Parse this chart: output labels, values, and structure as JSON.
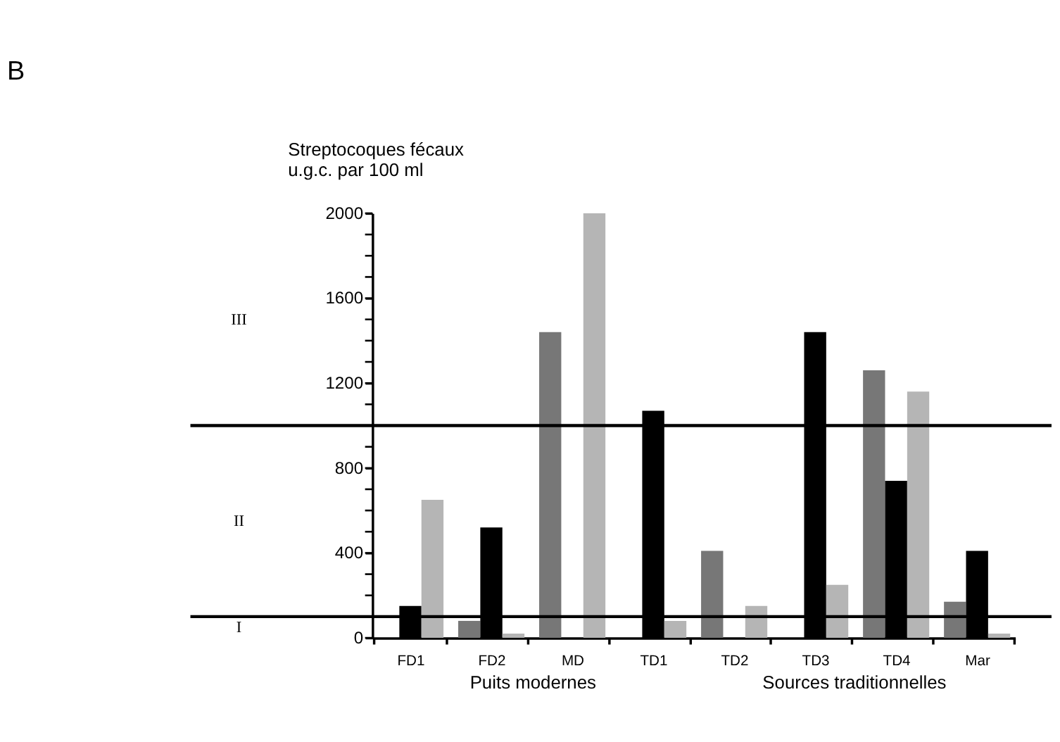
{
  "chart_data": {
    "type": "bar",
    "title": "B",
    "ylabel": "Streptocoques fécaux\nu.g.c. par 100 ml",
    "categories": [
      "FD1",
      "FD2",
      "MD",
      "TD1",
      "TD2",
      "TD3",
      "TD4",
      "Mar"
    ],
    "series": [
      {
        "color": "#777777",
        "values": [
          0,
          80,
          1440,
          0,
          410,
          0,
          1260,
          170
        ]
      },
      {
        "color": "#000000",
        "values": [
          150,
          520,
          0,
          1070,
          0,
          1440,
          740,
          410
        ]
      },
      {
        "color": "#b5b5b5",
        "values": [
          650,
          20,
          2000,
          80,
          150,
          250,
          1160,
          20
        ]
      }
    ],
    "ylim": [
      0,
      2000
    ],
    "yticks": [
      0,
      {
        "value": 100,
        "label": null
      },
      {
        "value": 200,
        "label": null
      },
      {
        "value": 300,
        "label": null
      },
      400,
      {
        "value": 500,
        "label": null
      },
      {
        "value": 600,
        "label": null
      },
      {
        "value": 700,
        "label": null
      },
      800,
      {
        "value": 900,
        "label": null
      },
      {
        "value": 1000,
        "label": null
      },
      {
        "value": 1100,
        "label": null
      },
      1200,
      {
        "value": 1300,
        "label": null
      },
      {
        "value": 1400,
        "label": null
      },
      {
        "value": 1500,
        "label": null
      },
      1600,
      {
        "value": 1700,
        "label": null
      },
      {
        "value": 1800,
        "label": null
      },
      {
        "value": 1900,
        "label": null
      },
      2000
    ],
    "ref_lines": [
      {
        "axis": "y",
        "value": 100
      },
      {
        "axis": "y",
        "value": 1000
      }
    ],
    "annotations": [
      "I",
      "II",
      "III",
      "Puits modernes",
      "Sources traditionnelles"
    ],
    "grid": false
  }
}
